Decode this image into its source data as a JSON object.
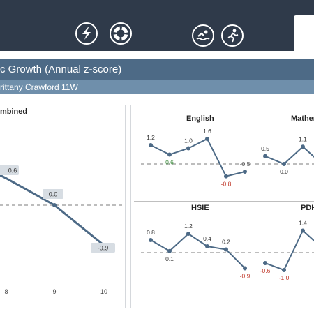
{
  "header": {
    "icons": [
      {
        "name": "lightning-icon"
      },
      {
        "name": "lifebuoy-icon"
      },
      {
        "name": "swimming-icon"
      },
      {
        "name": "running-icon"
      }
    ]
  },
  "title": "c Growth (Annual z-score)",
  "subtitle": "rittany Crawford 11W",
  "colors": {
    "line": "#4d6a86",
    "negative": "#c0392b",
    "positive": "#3c8c3c",
    "label_box": "#d7dde3"
  },
  "chart_data": [
    {
      "type": "line",
      "title": "mbined",
      "x": [
        "8",
        "9",
        "10"
      ],
      "series": [
        {
          "values": [
            0.6,
            0.0,
            -0.9
          ]
        }
      ],
      "data_labels": [
        "0.6",
        "0.0",
        "-0.9"
      ],
      "ylim": [
        -1.5,
        1.5
      ]
    },
    {
      "type": "line",
      "title": "English",
      "series": [
        {
          "values": [
            1.2,
            0.6,
            1.0,
            1.6,
            -0.8,
            -0.5
          ]
        }
      ],
      "data_labels": [
        "1.2",
        "0.6",
        "1.0",
        "1.6",
        "-0.8",
        "-0.5"
      ]
    },
    {
      "type": "line",
      "title": "Mather",
      "series": [
        {
          "values": [
            0.5,
            0.0,
            1.1
          ]
        }
      ],
      "data_labels": [
        "0.5",
        "0.0",
        "1.1"
      ]
    },
    {
      "type": "line",
      "title": "HSIE",
      "series": [
        {
          "values": [
            0.8,
            0.1,
            1.2,
            0.4,
            0.2,
            -0.9
          ]
        }
      ],
      "data_labels": [
        "0.8",
        "0.1",
        "1.2",
        "0.4",
        "0.2",
        "-0.9"
      ]
    },
    {
      "type": "line",
      "title": "PDH",
      "series": [
        {
          "values": [
            -0.6,
            -1.0,
            1.4
          ]
        }
      ],
      "data_labels": [
        "-0.6",
        "-1.0",
        "1.4"
      ]
    }
  ]
}
